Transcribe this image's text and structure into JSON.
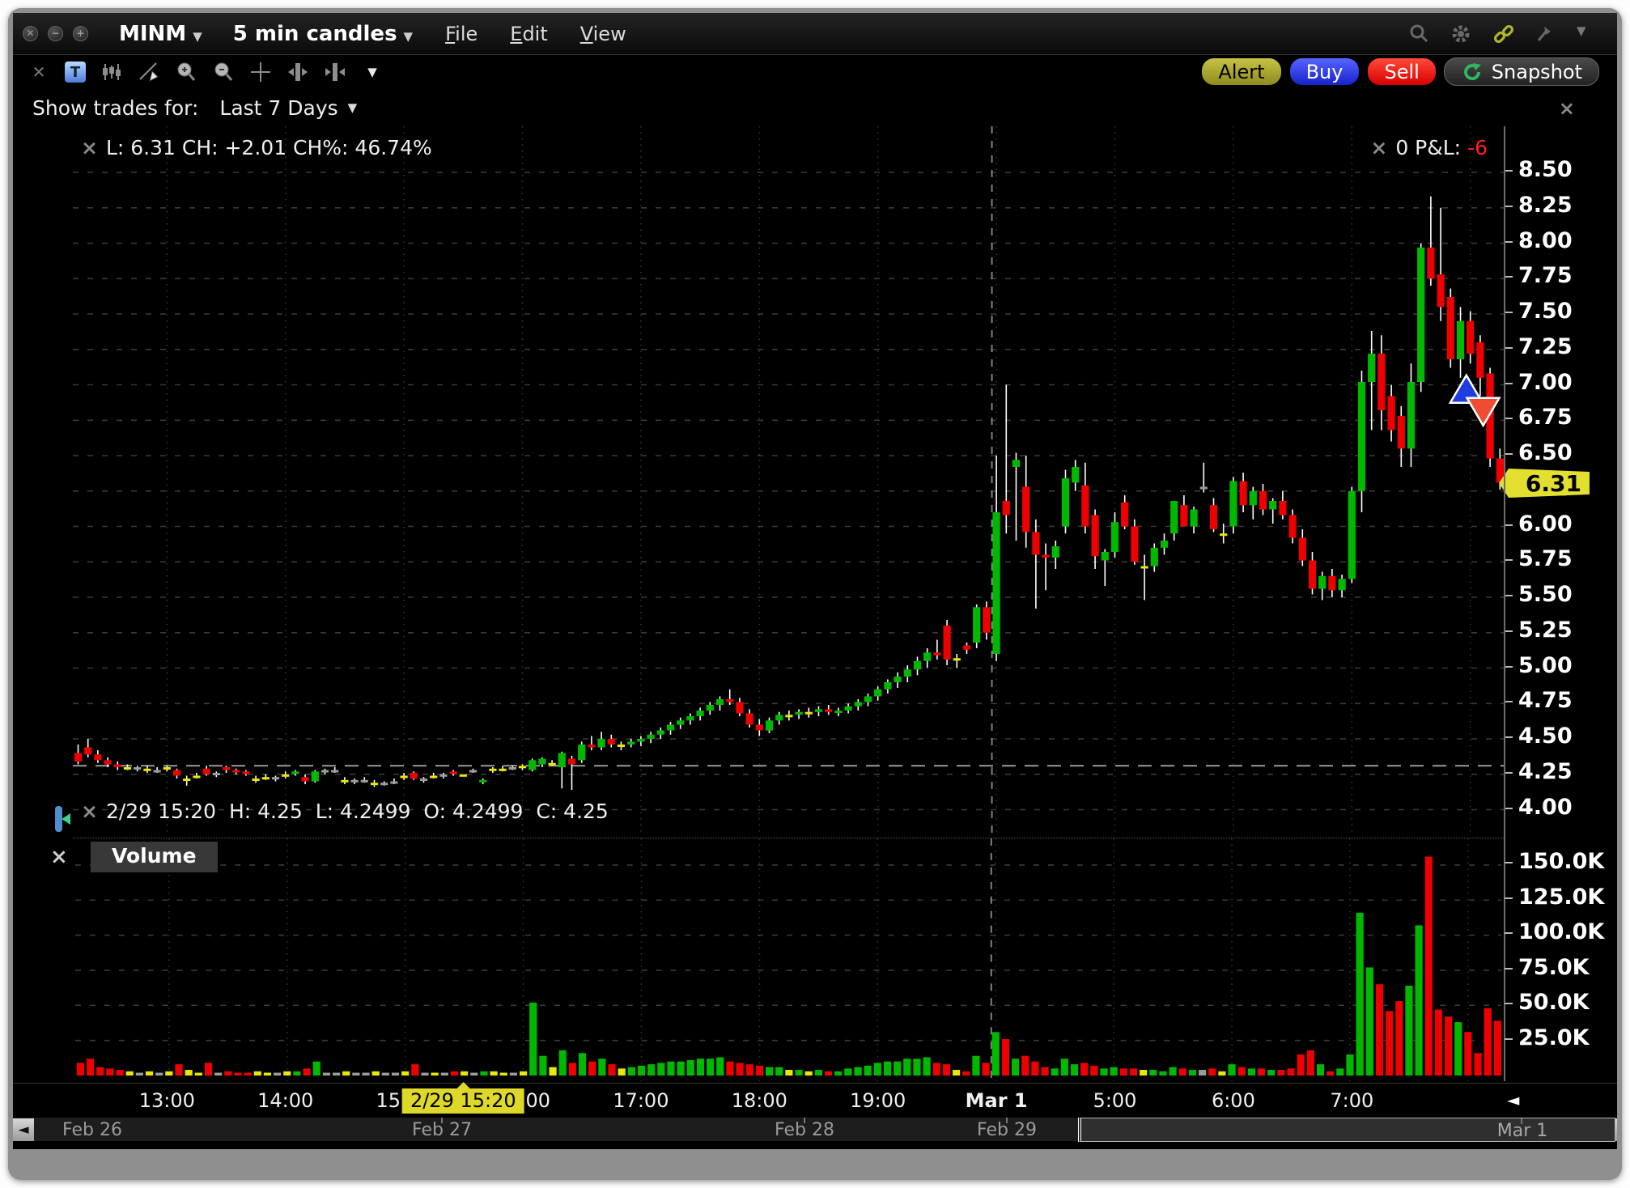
{
  "ui": {
    "close_glyph": "×",
    "dropdown_glyph": "▼",
    "left_arrow_glyph": "◄",
    "right_arrow_glyph": "►"
  },
  "window": {
    "symbol": "MINM",
    "timeframe": "5 min candles",
    "menus": [
      "File",
      "Edit",
      "View"
    ]
  },
  "toolbar": {
    "alert_label": "Alert",
    "buy_label": "Buy",
    "sell_label": "Sell",
    "snapshot_label": "Snapshot"
  },
  "trades_filter": {
    "label": "Show trades for:",
    "value": "Last 7 Days"
  },
  "legend": {
    "text": "L: 6.31 CH: +2.01 CH%: 46.74%"
  },
  "pnl": {
    "label": "0 P&L: ",
    "value": "-6"
  },
  "ohlc": {
    "text": "2/29 15:20  H: 4.25  L: 4.2499  O: 4.2499  C: 4.25"
  },
  "volume_pane": {
    "label": "Volume"
  },
  "scrollbar": {
    "days": [
      "Feb 26",
      "Feb 27",
      "Feb 28",
      "Feb 29"
    ],
    "thumb_label": "Mar 1"
  },
  "chart_data": {
    "type": "candlestick",
    "symbol": "MINM",
    "interval": "5 min",
    "last_price_label": "6.31",
    "price_axis_ticks": [
      "8.50",
      "8.25",
      "8.00",
      "7.75",
      "7.50",
      "7.25",
      "7.00",
      "6.75",
      "6.50",
      "6.25",
      "6.00",
      "5.75",
      "5.50",
      "5.25",
      "5.00",
      "4.75",
      "4.50",
      "4.25",
      "4.00"
    ],
    "volume_axis_ticks": [
      "150.0K",
      "125.0K",
      "100.0K",
      "75.0K",
      "50.0K",
      "25.0K"
    ],
    "price_range": [
      4.0,
      8.5
    ],
    "volume_unit": "K",
    "grid": true,
    "prev_close_line": 4.31,
    "session_break_index": 92.55,
    "time_ticks": [
      {
        "index": 9,
        "label": "13:00"
      },
      {
        "index": 21,
        "label": "14:00"
      },
      {
        "index": 33,
        "label": "15:00"
      },
      {
        "index": 45,
        "label": "16:00"
      },
      {
        "index": 57,
        "label": "17:00"
      },
      {
        "index": 69,
        "label": "18:00"
      },
      {
        "index": 81,
        "label": "19:00"
      },
      {
        "index": 93,
        "label": "Mar 1",
        "bold": true
      },
      {
        "index": 105,
        "label": "5:00"
      },
      {
        "index": 117,
        "label": "6:00"
      },
      {
        "index": 129,
        "label": "7:00"
      },
      {
        "index": 141,
        "label": ""
      }
    ],
    "selected_candle": {
      "index": 39,
      "tag": "2/29 15:20",
      "h": 4.25,
      "l": 4.2499,
      "o": 4.2499,
      "c": 4.25
    },
    "trade_markers": [
      {
        "type": "buy",
        "index": 140.6,
        "price": 6.97,
        "color": "#1f3cdf"
      },
      {
        "type": "sell",
        "index": 142.3,
        "price": 6.81,
        "color": "#ee4d33"
      }
    ],
    "colors": {
      "up": "#00b800",
      "down": "#ef0000",
      "doji_yellow": "#e8e800",
      "doji_gray": "#9c9c9c",
      "wick": "#ffffff"
    },
    "candles_format": [
      "open",
      "high",
      "low",
      "close",
      "volume_K",
      "doji_color(Y|W)"
    ],
    "candles": [
      [
        4.4,
        4.46,
        4.32,
        4.34,
        9
      ],
      [
        4.44,
        4.5,
        4.37,
        4.39,
        12
      ],
      [
        4.39,
        4.42,
        4.33,
        4.35,
        6
      ],
      [
        4.35,
        4.37,
        4.3,
        4.32,
        5
      ],
      [
        4.32,
        4.34,
        4.28,
        4.3,
        4
      ],
      [
        4.3,
        4.32,
        4.28,
        4.3,
        3,
        "Y"
      ],
      [
        4.3,
        4.31,
        4.27,
        4.3,
        2,
        "W"
      ],
      [
        4.29,
        4.31,
        4.26,
        4.29,
        3,
        "Y"
      ],
      [
        4.28,
        4.3,
        4.26,
        4.28,
        2,
        "W"
      ],
      [
        4.3,
        4.31,
        4.27,
        4.3,
        3,
        "Y"
      ],
      [
        4.28,
        4.29,
        4.22,
        4.24,
        8
      ],
      [
        4.22,
        4.24,
        4.17,
        4.22,
        4,
        "Y"
      ],
      [
        4.24,
        4.26,
        4.22,
        4.24,
        2,
        "Y"
      ],
      [
        4.29,
        4.31,
        4.24,
        4.25,
        9
      ],
      [
        4.26,
        4.27,
        4.23,
        4.26,
        2,
        "W"
      ],
      [
        4.3,
        4.31,
        4.26,
        4.28,
        3
      ],
      [
        4.28,
        4.29,
        4.25,
        4.27,
        2,
        "W"
      ],
      [
        4.27,
        4.28,
        4.24,
        4.26,
        2
      ],
      [
        4.22,
        4.24,
        4.19,
        4.22,
        3,
        "Y"
      ],
      [
        4.23,
        4.25,
        4.21,
        4.23,
        2,
        "Y"
      ],
      [
        4.23,
        4.24,
        4.2,
        4.23,
        2,
        "W"
      ],
      [
        4.25,
        4.27,
        4.22,
        4.25,
        3,
        "Y"
      ],
      [
        4.26,
        4.28,
        4.24,
        4.27,
        3
      ],
      [
        4.23,
        4.25,
        4.18,
        4.2,
        5
      ],
      [
        4.2,
        4.28,
        4.19,
        4.27,
        10
      ],
      [
        4.28,
        4.29,
        4.25,
        4.28,
        2,
        "W"
      ],
      [
        4.28,
        4.3,
        4.26,
        4.28,
        2,
        "W"
      ],
      [
        4.21,
        4.23,
        4.18,
        4.21,
        3,
        "Y"
      ],
      [
        4.21,
        4.22,
        4.18,
        4.21,
        2,
        "W"
      ],
      [
        4.21,
        4.23,
        4.19,
        4.21,
        2,
        "W"
      ],
      [
        4.19,
        4.21,
        4.16,
        4.19,
        3,
        "Y"
      ],
      [
        4.19,
        4.2,
        4.17,
        4.19,
        2,
        "W"
      ],
      [
        4.2,
        4.22,
        4.18,
        4.2,
        2,
        "W"
      ],
      [
        4.24,
        4.26,
        4.21,
        4.24,
        3,
        "Y"
      ],
      [
        4.26,
        4.27,
        4.21,
        4.22,
        8
      ],
      [
        4.22,
        4.23,
        4.19,
        4.22,
        2,
        "W"
      ],
      [
        4.24,
        4.26,
        4.22,
        4.24,
        2,
        "Y"
      ],
      [
        4.25,
        4.26,
        4.22,
        4.25,
        2,
        "W"
      ],
      [
        4.27,
        4.28,
        4.24,
        4.26,
        3
      ],
      [
        4.2499,
        4.25,
        4.2499,
        4.25,
        3,
        "Y"
      ],
      [
        4.28,
        4.29,
        4.26,
        4.28,
        2,
        "W"
      ],
      [
        4.2,
        4.22,
        4.18,
        4.21,
        3
      ],
      [
        4.29,
        4.3,
        4.26,
        4.29,
        3,
        "Y"
      ],
      [
        4.29,
        4.31,
        4.27,
        4.29,
        2,
        "Y"
      ],
      [
        4.3,
        4.31,
        4.28,
        4.3,
        2,
        "W"
      ],
      [
        4.31,
        4.32,
        4.28,
        4.31,
        3,
        "Y"
      ],
      [
        4.28,
        4.36,
        4.27,
        4.35,
        52
      ],
      [
        4.32,
        4.37,
        4.3,
        4.36,
        14
      ],
      [
        4.33,
        4.35,
        4.31,
        4.33,
        6,
        "Y"
      ],
      [
        4.3,
        4.41,
        4.15,
        4.4,
        18
      ],
      [
        4.36,
        4.38,
        4.14,
        4.32,
        9
      ],
      [
        4.35,
        4.48,
        4.33,
        4.46,
        16
      ],
      [
        4.46,
        4.52,
        4.42,
        4.44,
        10
      ],
      [
        4.44,
        4.55,
        4.42,
        4.5,
        12
      ],
      [
        4.5,
        4.53,
        4.44,
        4.46,
        8
      ],
      [
        4.46,
        4.48,
        4.42,
        4.46,
        5,
        "Y"
      ],
      [
        4.46,
        4.5,
        4.44,
        4.48,
        6
      ],
      [
        4.48,
        4.52,
        4.45,
        4.5,
        7
      ],
      [
        4.5,
        4.55,
        4.47,
        4.53,
        8
      ],
      [
        4.53,
        4.58,
        4.5,
        4.56,
        9
      ],
      [
        4.56,
        4.62,
        4.53,
        4.6,
        10
      ],
      [
        4.6,
        4.65,
        4.57,
        4.63,
        10
      ],
      [
        4.63,
        4.68,
        4.6,
        4.66,
        11
      ],
      [
        4.66,
        4.72,
        4.63,
        4.7,
        12
      ],
      [
        4.7,
        4.76,
        4.67,
        4.74,
        12
      ],
      [
        4.74,
        4.8,
        4.7,
        4.78,
        13
      ],
      [
        4.78,
        4.85,
        4.74,
        4.76,
        10
      ],
      [
        4.76,
        4.79,
        4.66,
        4.68,
        9
      ],
      [
        4.68,
        4.71,
        4.58,
        4.6,
        8
      ],
      [
        4.6,
        4.64,
        4.52,
        4.56,
        7
      ],
      [
        4.56,
        4.65,
        4.54,
        4.63,
        6
      ],
      [
        4.63,
        4.69,
        4.6,
        4.67,
        6
      ],
      [
        4.67,
        4.7,
        4.63,
        4.67,
        4,
        "Y"
      ],
      [
        4.67,
        4.71,
        4.64,
        4.69,
        4,
        "W"
      ],
      [
        4.69,
        4.72,
        4.65,
        4.69,
        3,
        "Y"
      ],
      [
        4.69,
        4.73,
        4.66,
        4.71,
        4
      ],
      [
        4.71,
        4.74,
        4.67,
        4.69,
        3
      ],
      [
        4.69,
        4.72,
        4.66,
        4.7,
        3,
        "W"
      ],
      [
        4.7,
        4.75,
        4.68,
        4.73,
        5
      ],
      [
        4.73,
        4.78,
        4.7,
        4.76,
        6
      ],
      [
        4.76,
        4.82,
        4.73,
        4.8,
        7
      ],
      [
        4.8,
        4.87,
        4.77,
        4.85,
        9
      ],
      [
        4.85,
        4.92,
        4.82,
        4.9,
        10
      ],
      [
        4.9,
        4.97,
        4.86,
        4.94,
        10
      ],
      [
        4.94,
        5.02,
        4.9,
        4.99,
        12
      ],
      [
        4.99,
        5.08,
        4.95,
        5.05,
        12
      ],
      [
        5.05,
        5.14,
        5.0,
        5.11,
        13
      ],
      [
        5.11,
        5.2,
        5.06,
        5.09,
        9
      ],
      [
        5.3,
        5.34,
        5.02,
        5.06,
        8
      ],
      [
        5.07,
        5.1,
        5.0,
        5.07,
        4,
        "Y"
      ],
      [
        5.16,
        5.18,
        5.1,
        5.13,
        3
      ],
      [
        5.18,
        5.45,
        5.14,
        5.43,
        14
      ],
      [
        5.43,
        5.47,
        5.2,
        5.25,
        9
      ],
      [
        5.1,
        6.5,
        5.05,
        6.1,
        31
      ],
      [
        6.18,
        7.0,
        5.95,
        6.08,
        26
      ],
      [
        6.42,
        6.52,
        5.9,
        6.47,
        12
      ],
      [
        6.28,
        6.5,
        5.85,
        5.96,
        14
      ],
      [
        5.96,
        6.05,
        5.42,
        5.8,
        10
      ],
      [
        5.8,
        5.88,
        5.55,
        5.78,
        6
      ],
      [
        5.78,
        5.9,
        5.7,
        5.86,
        5
      ],
      [
        6.0,
        6.4,
        5.95,
        6.34,
        12
      ],
      [
        6.31,
        6.47,
        6.25,
        6.42,
        8
      ],
      [
        6.29,
        6.45,
        5.95,
        6.0,
        9
      ],
      [
        6.08,
        6.12,
        5.7,
        5.79,
        7
      ],
      [
        5.76,
        5.84,
        5.58,
        5.82,
        5
      ],
      [
        5.82,
        6.1,
        5.78,
        6.03,
        6
      ],
      [
        6.17,
        6.22,
        5.98,
        6.0,
        5
      ],
      [
        6.0,
        6.05,
        5.73,
        5.75,
        5
      ],
      [
        5.72,
        5.8,
        5.48,
        5.72,
        4,
        "Y"
      ],
      [
        5.72,
        5.88,
        5.68,
        5.85,
        4
      ],
      [
        5.85,
        5.95,
        5.8,
        5.9,
        3
      ],
      [
        5.95,
        6.18,
        5.9,
        6.18,
        6
      ],
      [
        6.15,
        6.22,
        6.0,
        6.0,
        5
      ],
      [
        6.0,
        6.14,
        5.95,
        6.12,
        4
      ],
      [
        6.28,
        6.45,
        6.24,
        6.28,
        4,
        "W"
      ],
      [
        6.15,
        6.2,
        5.96,
        5.98,
        5
      ],
      [
        5.95,
        6.02,
        5.88,
        5.95,
        3,
        "Y"
      ],
      [
        6.0,
        6.35,
        5.95,
        6.32,
        8
      ],
      [
        6.32,
        6.38,
        6.1,
        6.15,
        6
      ],
      [
        6.15,
        6.28,
        6.05,
        6.25,
        5
      ],
      [
        6.25,
        6.3,
        6.08,
        6.12,
        5
      ],
      [
        6.12,
        6.2,
        6.02,
        6.18,
        4
      ],
      [
        6.18,
        6.25,
        6.05,
        6.08,
        4
      ],
      [
        6.08,
        6.12,
        5.88,
        5.92,
        5
      ],
      [
        5.92,
        5.98,
        5.72,
        5.76,
        15
      ],
      [
        5.76,
        5.82,
        5.52,
        5.56,
        18
      ],
      [
        5.56,
        5.68,
        5.48,
        5.65,
        8
      ],
      [
        5.65,
        5.7,
        5.5,
        5.55,
        3
      ],
      [
        5.55,
        5.66,
        5.5,
        5.63,
        5
      ],
      [
        5.63,
        6.28,
        5.6,
        6.25,
        15
      ],
      [
        6.25,
        7.1,
        6.1,
        7.02,
        116
      ],
      [
        7.02,
        7.38,
        6.68,
        7.22,
        77
      ],
      [
        7.22,
        7.35,
        6.68,
        6.82,
        65
      ],
      [
        6.92,
        7.0,
        6.6,
        6.68,
        46
      ],
      [
        6.78,
        6.85,
        6.42,
        6.55,
        53
      ],
      [
        6.55,
        7.15,
        6.42,
        7.02,
        64
      ],
      [
        7.02,
        8.0,
        6.95,
        7.97,
        107
      ],
      [
        7.97,
        8.33,
        7.7,
        7.75,
        156
      ],
      [
        7.78,
        8.25,
        7.45,
        7.55,
        47
      ],
      [
        7.62,
        7.68,
        7.12,
        7.18,
        42
      ],
      [
        7.18,
        7.55,
        7.05,
        7.45,
        38
      ],
      [
        7.45,
        7.52,
        7.15,
        7.22,
        31
      ],
      [
        7.3,
        7.35,
        6.92,
        7.05,
        16
      ],
      [
        7.08,
        7.12,
        6.42,
        6.48,
        48
      ],
      [
        6.48,
        6.55,
        6.26,
        6.31,
        39
      ]
    ]
  }
}
